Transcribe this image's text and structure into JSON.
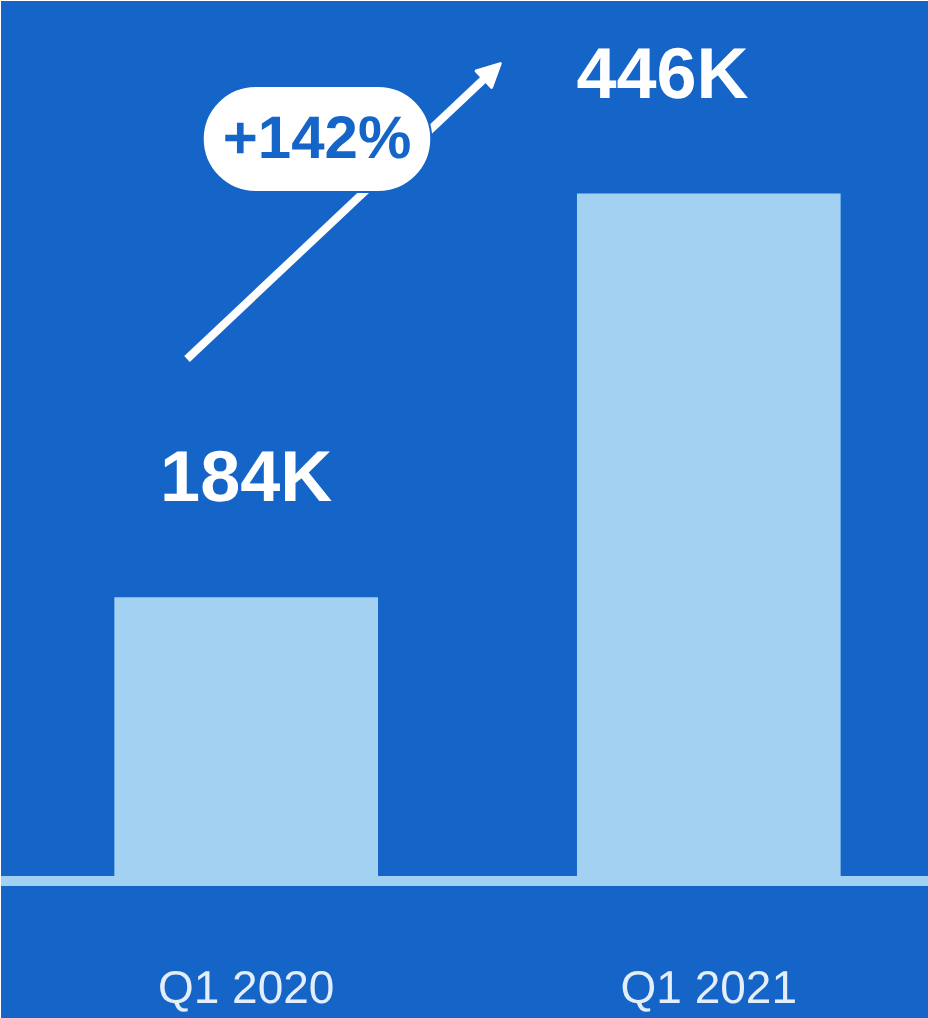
{
  "chart_data": {
    "type": "bar",
    "categories": [
      "Q1 2020",
      "Q1 2021"
    ],
    "values": [
      184,
      446
    ],
    "value_labels": [
      "184K",
      "446K"
    ],
    "color": "#a3d1f2",
    "annotations": [
      "+142%"
    ],
    "grid": false
  }
}
